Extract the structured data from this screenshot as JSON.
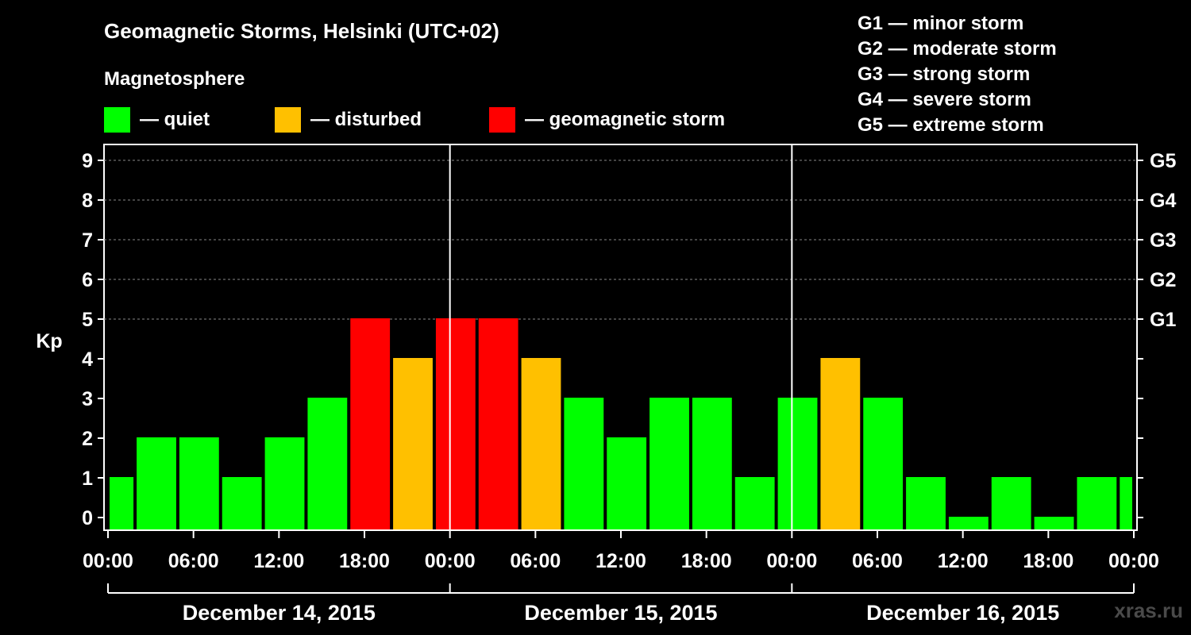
{
  "header": {
    "title": "Geomagnetic Storms, Helsinki (UTC+02)",
    "magnetosphere_label": "Magnetosphere"
  },
  "legend": [
    {
      "label": "— quiet",
      "color": "#00ff00"
    },
    {
      "label": "— disturbed",
      "color": "#ffc000"
    },
    {
      "label": "— geomagnetic storm",
      "color": "#ff0000"
    }
  ],
  "storm_scale": [
    "G1 — minor storm",
    "G2 — moderate storm",
    "G3 — strong storm",
    "G4 — severe storm",
    "G5 — extreme storm"
  ],
  "watermark": "xras.ru",
  "chart_data": {
    "type": "bar",
    "title": "Geomagnetic Storms, Helsinki (UTC+02)",
    "ylabel": "Kp",
    "xlabel": "",
    "ylim": [
      0,
      9
    ],
    "yticks": [
      "0",
      "1",
      "2",
      "3",
      "4",
      "5",
      "6",
      "7",
      "8",
      "9"
    ],
    "right_axis_labels": [
      {
        "kp": 5,
        "label": "G1"
      },
      {
        "kp": 6,
        "label": "G2"
      },
      {
        "kp": 7,
        "label": "G3"
      },
      {
        "kp": 8,
        "label": "G4"
      },
      {
        "kp": 9,
        "label": "G5"
      }
    ],
    "x_range_hours": [
      0,
      72
    ],
    "xtick_hours": [
      0,
      6,
      12,
      18,
      24,
      30,
      36,
      42,
      48,
      54,
      60,
      66,
      72
    ],
    "xtick_labels": [
      "00:00",
      "06:00",
      "12:00",
      "18:00",
      "00:00",
      "06:00",
      "12:00",
      "18:00",
      "00:00",
      "06:00",
      "12:00",
      "18:00",
      "00:00"
    ],
    "day_boundaries_hours": [
      24,
      48
    ],
    "days": [
      {
        "label": "December 14, 2015",
        "start": 0,
        "end": 24
      },
      {
        "label": "December 15, 2015",
        "start": 24,
        "end": 48
      },
      {
        "label": "December 16, 2015",
        "start": 48,
        "end": 72
      }
    ],
    "colors": {
      "quiet": "#00ff00",
      "disturbed": "#ffc000",
      "storm": "#ff0000"
    },
    "bars": [
      {
        "start": 0,
        "end": 1.9,
        "kp": 1
      },
      {
        "start": 1.9,
        "end": 4.9,
        "kp": 2
      },
      {
        "start": 4.9,
        "end": 7.9,
        "kp": 2
      },
      {
        "start": 7.9,
        "end": 10.9,
        "kp": 1
      },
      {
        "start": 10.9,
        "end": 13.9,
        "kp": 2
      },
      {
        "start": 13.9,
        "end": 16.9,
        "kp": 3
      },
      {
        "start": 16.9,
        "end": 19.9,
        "kp": 5
      },
      {
        "start": 19.9,
        "end": 22.9,
        "kp": 4
      },
      {
        "start": 22.9,
        "end": 25.9,
        "kp": 5
      },
      {
        "start": 25.9,
        "end": 28.9,
        "kp": 5
      },
      {
        "start": 28.9,
        "end": 31.9,
        "kp": 4
      },
      {
        "start": 31.9,
        "end": 34.9,
        "kp": 3
      },
      {
        "start": 34.9,
        "end": 37.9,
        "kp": 2
      },
      {
        "start": 37.9,
        "end": 40.9,
        "kp": 3
      },
      {
        "start": 40.9,
        "end": 43.9,
        "kp": 3
      },
      {
        "start": 43.9,
        "end": 46.9,
        "kp": 1
      },
      {
        "start": 46.9,
        "end": 49.9,
        "kp": 3
      },
      {
        "start": 49.9,
        "end": 52.9,
        "kp": 4
      },
      {
        "start": 52.9,
        "end": 55.9,
        "kp": 3
      },
      {
        "start": 55.9,
        "end": 58.9,
        "kp": 1
      },
      {
        "start": 58.9,
        "end": 61.9,
        "kp": 0
      },
      {
        "start": 61.9,
        "end": 64.9,
        "kp": 1
      },
      {
        "start": 64.9,
        "end": 67.9,
        "kp": 0
      },
      {
        "start": 67.9,
        "end": 70.9,
        "kp": 1
      },
      {
        "start": 70.9,
        "end": 72,
        "kp": 1
      }
    ]
  }
}
